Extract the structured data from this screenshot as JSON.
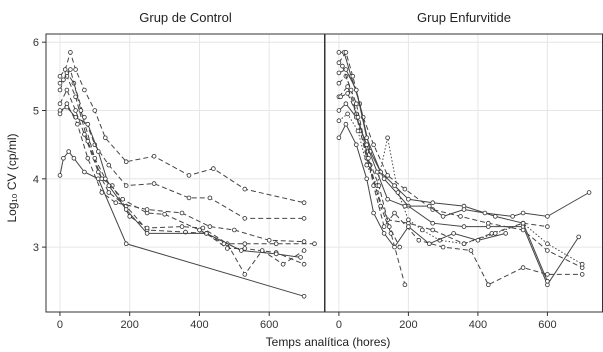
{
  "chart_data": {
    "type": "line",
    "xlabel": "Temps analítica (hores)",
    "ylabel": "Log₁₀ CV (cp/ml)",
    "xlim": [
      -40,
      760
    ],
    "ylim": [
      2.05,
      6.12
    ],
    "xticks": [
      0,
      200,
      400,
      600
    ],
    "yticks": [
      3,
      4,
      5,
      6
    ],
    "grid": true,
    "panels": [
      {
        "title": "Grup de Control",
        "series": [
          {
            "style": "solid",
            "points": [
              [
                0,
                4.05
              ],
              [
                10,
                4.3
              ],
              [
                25,
                4.4
              ],
              [
                40,
                4.3
              ],
              [
                70,
                4.1
              ],
              [
                110,
                4.0
              ],
              [
                190,
                3.05
              ],
              [
                700,
                2.28
              ]
            ]
          },
          {
            "style": "dashed",
            "points": [
              [
                0,
                5.5
              ],
              [
                15,
                5.6
              ],
              [
                30,
                5.85
              ],
              [
                45,
                5.6
              ],
              [
                70,
                5.3
              ],
              [
                100,
                5.0
              ],
              [
                130,
                4.6
              ],
              [
                190,
                4.25
              ],
              [
                270,
                4.33
              ],
              [
                370,
                4.05
              ],
              [
                440,
                4.15
              ],
              [
                530,
                3.85
              ],
              [
                700,
                3.65
              ]
            ]
          },
          {
            "style": "dashed",
            "points": [
              [
                0,
                5.3
              ],
              [
                20,
                5.55
              ],
              [
                40,
                5.4
              ],
              [
                70,
                4.9
              ],
              [
                100,
                4.5
              ],
              [
                140,
                4.2
              ],
              [
                190,
                3.9
              ],
              [
                270,
                3.93
              ],
              [
                370,
                3.72
              ],
              [
                430,
                3.72
              ],
              [
                530,
                3.42
              ],
              [
                700,
                3.42
              ]
            ]
          },
          {
            "style": "dashed",
            "points": [
              [
                0,
                5.1
              ],
              [
                20,
                5.3
              ],
              [
                45,
                5.0
              ],
              [
                70,
                4.65
              ],
              [
                110,
                4.1
              ],
              [
                140,
                3.8
              ],
              [
                190,
                3.6
              ],
              [
                250,
                3.25
              ],
              [
                360,
                3.22
              ],
              [
                420,
                3.2
              ],
              [
                480,
                2.98
              ],
              [
                530,
                2.98
              ],
              [
                620,
                2.92
              ],
              [
                700,
                2.75
              ]
            ]
          },
          {
            "style": "dashed",
            "points": [
              [
                0,
                5.4
              ],
              [
                20,
                5.5
              ],
              [
                45,
                5.2
              ],
              [
                80,
                4.55
              ],
              [
                120,
                4.0
              ],
              [
                150,
                3.9
              ],
              [
                200,
                3.45
              ],
              [
                250,
                3.28
              ],
              [
                350,
                3.3
              ],
              [
                410,
                3.28
              ],
              [
                480,
                3.05
              ],
              [
                530,
                2.6
              ],
              [
                580,
                2.95
              ],
              [
                640,
                2.75
              ],
              [
                700,
                2.95
              ]
            ]
          },
          {
            "style": "solid",
            "points": [
              [
                0,
                5.0
              ],
              [
                20,
                5.05
              ],
              [
                45,
                4.9
              ],
              [
                80,
                4.8
              ],
              [
                110,
                4.4
              ],
              [
                140,
                3.9
              ],
              [
                190,
                3.55
              ],
              [
                250,
                3.2
              ],
              [
                420,
                3.2
              ],
              [
                520,
                2.95
              ],
              [
                620,
                2.9
              ],
              [
                690,
                2.85
              ]
            ]
          },
          {
            "style": "dashed",
            "points": [
              [
                10,
                5.45
              ],
              [
                30,
                5.6
              ],
              [
                60,
                5.0
              ],
              [
                100,
                4.3
              ],
              [
                130,
                4.0
              ],
              [
                180,
                3.7
              ],
              [
                250,
                3.5
              ],
              [
                300,
                3.48
              ],
              [
                400,
                3.25
              ],
              [
                470,
                3.05
              ],
              [
                530,
                3.05
              ],
              [
                620,
                3.05
              ],
              [
                730,
                3.05
              ]
            ]
          },
          {
            "style": "dashed",
            "points": [
              [
                0,
                4.95
              ],
              [
                20,
                5.1
              ],
              [
                50,
                4.8
              ],
              [
                80,
                4.3
              ],
              [
                120,
                3.8
              ],
              [
                160,
                3.65
              ],
              [
                250,
                3.55
              ],
              [
                350,
                3.5
              ],
              [
                430,
                3.3
              ],
              [
                500,
                3.25
              ],
              [
                600,
                3.1
              ],
              [
                700,
                3.08
              ]
            ]
          }
        ]
      },
      {
        "title": "Grup Enfurvitide",
        "series": [
          {
            "style": "solid",
            "points": [
              [
                0,
                5.85
              ],
              [
                15,
                5.85
              ],
              [
                35,
                5.5
              ],
              [
                60,
                5.1
              ],
              [
                90,
                4.4
              ],
              [
                130,
                4.0
              ],
              [
                200,
                3.6
              ],
              [
                270,
                3.35
              ],
              [
                360,
                3.3
              ],
              [
                430,
                3.3
              ],
              [
                530,
                3.3
              ],
              [
                600,
                2.45
              ],
              [
                690,
                3.15
              ]
            ]
          },
          {
            "style": "dashed",
            "points": [
              [
                0,
                5.7
              ],
              [
                20,
                5.85
              ],
              [
                40,
                5.5
              ],
              [
                70,
                4.9
              ],
              [
                100,
                4.5
              ],
              [
                140,
                4.05
              ],
              [
                190,
                3.85
              ],
              [
                270,
                3.55
              ],
              [
                350,
                3.45
              ],
              [
                430,
                3.35
              ],
              [
                530,
                3.25
              ],
              [
                600,
                2.95
              ],
              [
                700,
                2.7
              ]
            ]
          },
          {
            "style": "solid",
            "points": [
              [
                0,
                5.55
              ],
              [
                20,
                5.6
              ],
              [
                50,
                5.3
              ],
              [
                80,
                4.6
              ],
              [
                120,
                4.1
              ],
              [
                160,
                3.9
              ],
              [
                200,
                3.7
              ],
              [
                270,
                3.65
              ],
              [
                360,
                3.6
              ],
              [
                450,
                3.45
              ],
              [
                530,
                3.35
              ],
              [
                600,
                2.5
              ]
            ]
          },
          {
            "style": "dashed",
            "points": [
              [
                0,
                5.4
              ],
              [
                20,
                5.5
              ],
              [
                50,
                5.1
              ],
              [
                80,
                4.4
              ],
              [
                100,
                3.9
              ],
              [
                130,
                3.3
              ],
              [
                160,
                3.5
              ],
              [
                230,
                3.1
              ],
              [
                300,
                3.0
              ],
              [
                380,
                2.95
              ],
              [
                430,
                2.45
              ],
              [
                530,
                2.7
              ],
              [
                600,
                2.6
              ],
              [
                700,
                2.6
              ]
            ]
          },
          {
            "style": "dashed",
            "points": [
              [
                0,
                5.2
              ],
              [
                25,
                5.35
              ],
              [
                50,
                4.95
              ],
              [
                80,
                4.3
              ],
              [
                110,
                3.8
              ],
              [
                140,
                3.4
              ],
              [
                200,
                3.35
              ],
              [
                270,
                3.25
              ],
              [
                360,
                3.05
              ],
              [
                440,
                3.2
              ],
              [
                530,
                3.35
              ],
              [
                600,
                3.3
              ]
            ]
          },
          {
            "style": "solid",
            "points": [
              [
                0,
                5.0
              ],
              [
                20,
                5.1
              ],
              [
                50,
                4.9
              ],
              [
                80,
                4.5
              ],
              [
                110,
                4.1
              ],
              [
                140,
                3.7
              ],
              [
                190,
                3.6
              ],
              [
                260,
                3.6
              ],
              [
                300,
                3.45
              ],
              [
                360,
                3.55
              ],
              [
                420,
                3.5
              ],
              [
                500,
                3.45
              ],
              [
                530,
                3.5
              ],
              [
                600,
                3.45
              ],
              [
                720,
                3.8
              ]
            ]
          },
          {
            "style": "dashed",
            "points": [
              [
                10,
                5.65
              ],
              [
                35,
                5.3
              ],
              [
                60,
                4.7
              ],
              [
                90,
                4.2
              ],
              [
                120,
                3.6
              ],
              [
                150,
                3.2
              ],
              [
                190,
                2.45
              ]
            ]
          },
          {
            "style": "dotted",
            "points": [
              [
                0,
                4.85
              ],
              [
                25,
                4.95
              ],
              [
                55,
                4.7
              ],
              [
                80,
                4.2
              ],
              [
                110,
                3.9
              ],
              [
                140,
                4.6
              ],
              [
                170,
                3.8
              ],
              [
                200,
                3.4
              ],
              [
                240,
                3.25
              ],
              [
                290,
                3.1
              ],
              [
                360,
                3.05
              ],
              [
                450,
                3.2
              ],
              [
                530,
                3.35
              ],
              [
                600,
                3.05
              ],
              [
                700,
                2.75
              ]
            ]
          },
          {
            "style": "solid",
            "points": [
              [
                0,
                4.6
              ],
              [
                20,
                4.8
              ],
              [
                50,
                4.5
              ],
              [
                80,
                4.0
              ],
              [
                100,
                3.5
              ],
              [
                130,
                3.2
              ],
              [
                160,
                3.0
              ],
              [
                200,
                3.3
              ],
              [
                260,
                3.05
              ],
              [
                330,
                3.2
              ],
              [
                400,
                3.1
              ],
              [
                480,
                3.2
              ]
            ]
          },
          {
            "style": "dashed",
            "points": [
              [
                5,
                5.2
              ],
              [
                25,
                5.25
              ],
              [
                55,
                4.9
              ],
              [
                85,
                4.3
              ],
              [
                115,
                3.9
              ],
              [
                145,
                3.3
              ],
              [
                175,
                3.0
              ]
            ]
          }
        ]
      }
    ]
  }
}
